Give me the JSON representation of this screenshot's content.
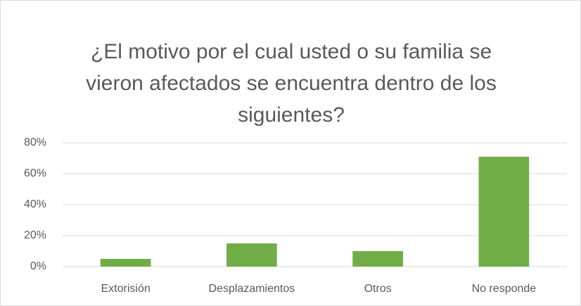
{
  "chart_data": {
    "type": "bar",
    "title": "¿El motivo por el cual usted o su familia se vieron afectados se encuentra dentro de los siguientes?",
    "categories": [
      "Extorisión",
      "Desplazamientos",
      "Otros",
      "No responde"
    ],
    "values": [
      5,
      15,
      10,
      71
    ],
    "color": "#70ad47",
    "ylim": [
      0,
      80
    ],
    "yticks": [
      {
        "value": 0,
        "label": "0%"
      },
      {
        "value": 20,
        "label": "20%"
      },
      {
        "value": 40,
        "label": "40%"
      },
      {
        "value": 60,
        "label": "60%"
      },
      {
        "value": 80,
        "label": "80%"
      }
    ],
    "grid": true
  }
}
